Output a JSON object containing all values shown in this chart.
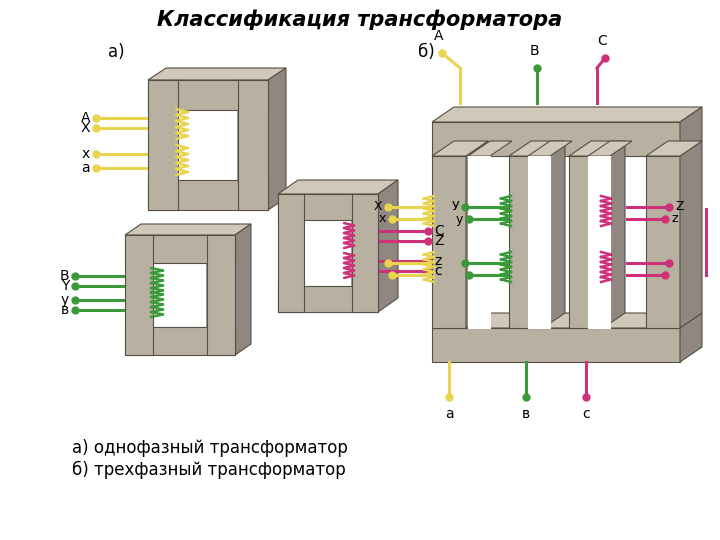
{
  "title": "Классификация трансформатора",
  "title_fontsize": 15,
  "title_style": "italic",
  "title_weight": "bold",
  "bg_color": "#ffffff",
  "label_a": "а)",
  "label_b": "б)",
  "caption_a": "а) однофазный трансформатор",
  "caption_b": "б) трехфазный трансформатор",
  "caption_fontsize": 12,
  "yellow": "#E8D44D",
  "green": "#3A9A3A",
  "pink": "#D0307A",
  "face_color": "#B8B0A0",
  "side_color": "#908880",
  "top_color": "#D0C8B8",
  "edge_color": "#555045",
  "wire_lw": 2.2,
  "dot_size": 25
}
